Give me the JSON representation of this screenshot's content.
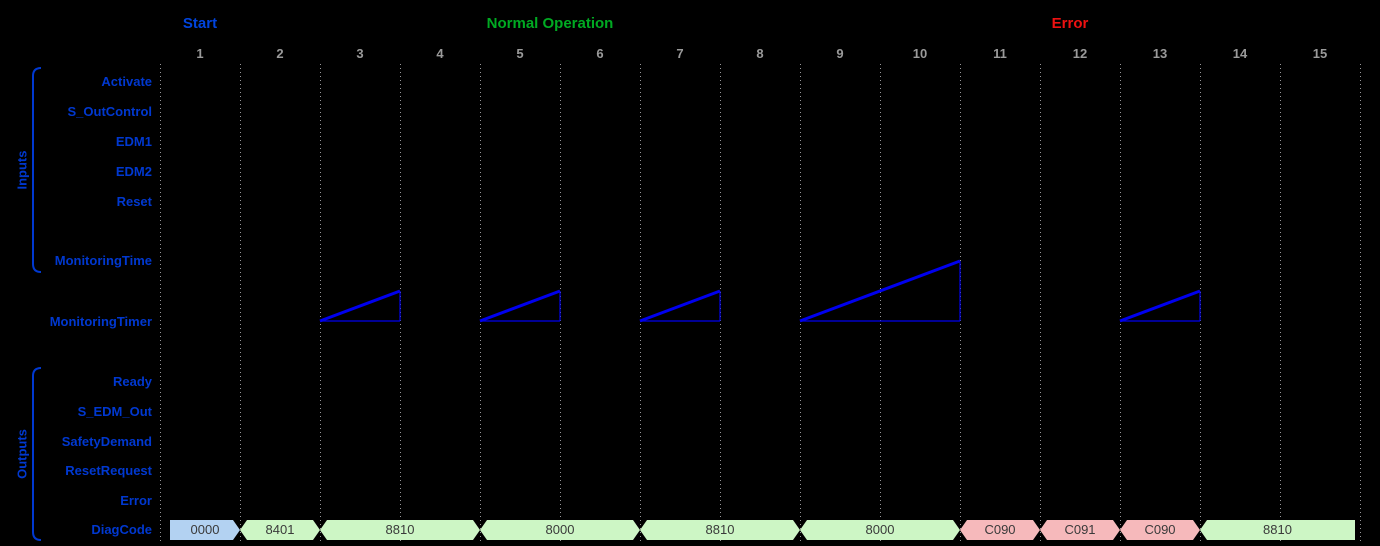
{
  "phases": [
    {
      "label": "Start"
    },
    {
      "label": "Normal Operation"
    },
    {
      "label": "Error"
    }
  ],
  "ticks": [
    "1",
    "2",
    "3",
    "4",
    "5",
    "6",
    "7",
    "8",
    "9",
    "10",
    "11",
    "12",
    "13",
    "14",
    "15"
  ],
  "inputs": {
    "group_label": "Inputs",
    "signals": [
      "Activate",
      "S_OutControl",
      "EDM1",
      "EDM2",
      "Reset",
      "MonitoringTime"
    ]
  },
  "timer": {
    "label": "MonitoringTimer",
    "ramps": [
      {
        "from": 3,
        "to": 3,
        "peak_units": 1
      },
      {
        "from": 5,
        "to": 5,
        "peak_units": 1
      },
      {
        "from": 7,
        "to": 7,
        "peak_units": 1
      },
      {
        "from": 9,
        "to": 10,
        "peak_units": 2
      },
      {
        "from": 13,
        "to": 13,
        "peak_units": 1
      }
    ]
  },
  "outputs": {
    "group_label": "Outputs",
    "signals": [
      "Ready",
      "S_EDM_Out",
      "SafetyDemand",
      "ResetRequest",
      "Error"
    ]
  },
  "diagcode": {
    "label": "DiagCode",
    "values": [
      {
        "value": "0000",
        "kind": "init",
        "from": 1,
        "to": 1
      },
      {
        "value": "8401",
        "kind": "ok",
        "from": 2,
        "to": 2
      },
      {
        "value": "8810",
        "kind": "ok",
        "from": 3,
        "to": 4
      },
      {
        "value": "8000",
        "kind": "ok",
        "from": 5,
        "to": 6
      },
      {
        "value": "8810",
        "kind": "ok",
        "from": 7,
        "to": 8
      },
      {
        "value": "8000",
        "kind": "ok",
        "from": 9,
        "to": 10
      },
      {
        "value": "C090",
        "kind": "error",
        "from": 11,
        "to": 11
      },
      {
        "value": "C091",
        "kind": "error",
        "from": 12,
        "to": 12
      },
      {
        "value": "C090",
        "kind": "error",
        "from": 13,
        "to": 13
      },
      {
        "value": "8810",
        "kind": "ok",
        "from": 14,
        "to": 15
      }
    ]
  },
  "colors": {
    "background": "#000000",
    "label_blue": "#0038d0",
    "tick_gray": "#9a9a9a",
    "phase_start_blue": "#0044dd",
    "phase_normal_green": "#00aa22",
    "phase_error_red": "#ee1111",
    "ramp_blue": "#0000ee",
    "box_init_blue": "#b3d2f2",
    "box_ok_green": "#cdf6c5",
    "box_error_pink": "#f6b9bb",
    "box_text": "#3a3a3a"
  }
}
